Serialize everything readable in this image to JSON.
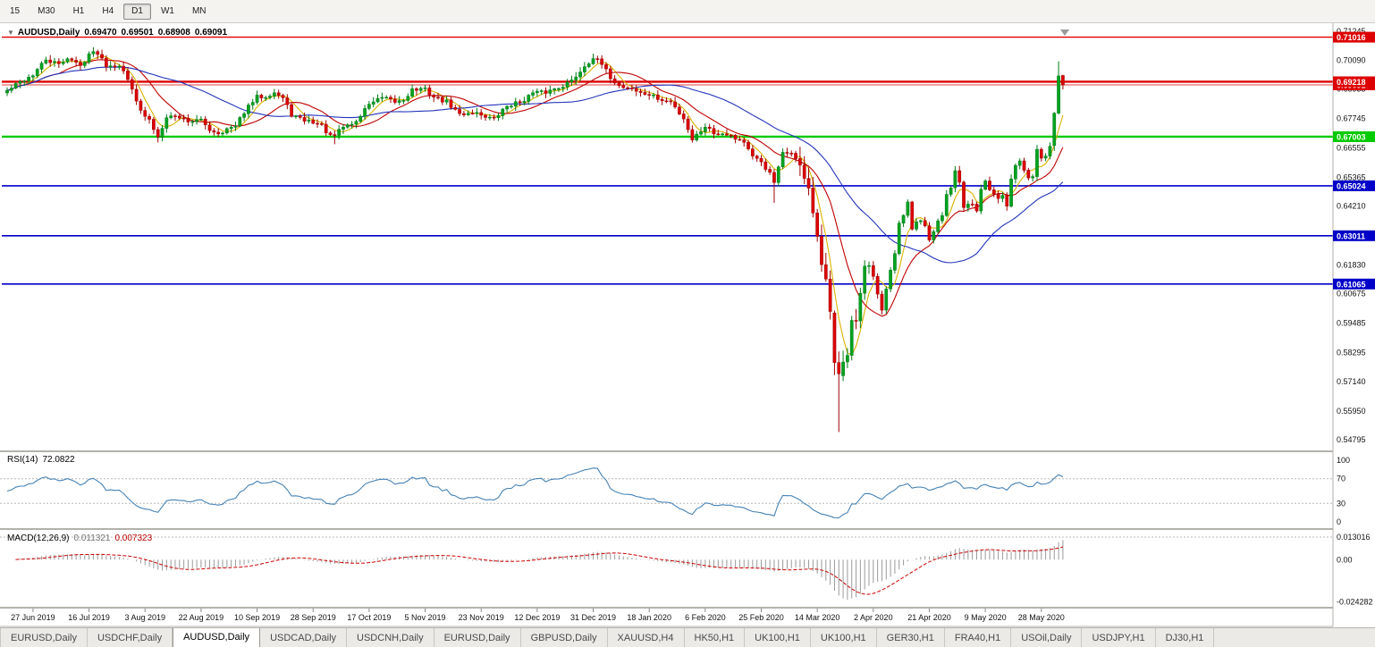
{
  "toolbar": {
    "periods": [
      {
        "label": "15",
        "active": false
      },
      {
        "label": "M30",
        "active": false
      },
      {
        "label": "H1",
        "active": false
      },
      {
        "label": "H4",
        "active": false
      },
      {
        "label": "D1",
        "active": true
      },
      {
        "label": "W1",
        "active": false
      },
      {
        "label": "MN",
        "active": false
      }
    ]
  },
  "chart": {
    "title": {
      "symbol": "AUDUSD,Daily",
      "open": "0.69470",
      "high": "0.69501",
      "low": "0.68908",
      "close": "0.69091"
    },
    "colors": {
      "up": "#00a21f",
      "up_stroke": "#007a16",
      "down": "#dd0000",
      "down_stroke": "#9e0000",
      "ma_fast": "#d9b300",
      "ma_mid": "#c00000",
      "ma_slow": "#2335bb",
      "level_red": "#dd0000",
      "level_green": "#00ca00",
      "level_blue": "#0000c8",
      "rsi": "#4682b4",
      "macd_hist": "#9a9a9a",
      "macd_signal": "#cc0000",
      "axis_text": "#111111",
      "badge_text": "#ffffff"
    },
    "price_axis": {
      "ticks": [
        "0.71245",
        "0.70090",
        "0.68935",
        "0.67745",
        "0.66555",
        "0.65365",
        "0.64210",
        "0.63020",
        "0.61830",
        "0.60675",
        "0.59485",
        "0.58295",
        "0.57140",
        "0.55950",
        "0.54795"
      ]
    },
    "levels": [
      {
        "price": 0.71016,
        "label": "0.71016",
        "color": "red",
        "width": 1.3
      },
      {
        "price": 0.69218,
        "label": "0.69218",
        "color": "red",
        "width": 2.4
      },
      {
        "price": 0.67003,
        "label": "0.67003",
        "color": "green",
        "width": 2.4
      },
      {
        "price": 0.65024,
        "label": "0.65024",
        "color": "blue",
        "width": 1.6
      },
      {
        "price": 0.63011,
        "label": "0.63011",
        "color": "blue",
        "width": 1.6
      },
      {
        "price": 0.61065,
        "label": "0.61065",
        "color": "blue",
        "width": 1.6
      }
    ],
    "bid": {
      "price": 0.69091,
      "label": "0.69091"
    }
  },
  "chart_data": {
    "type": "candlestick",
    "symbol": "AUDUSD",
    "timeframe": "Daily",
    "bar_count": 246,
    "price_range": [
      0.5436,
      0.7136
    ],
    "dates": [
      "27 Jun 2019",
      "16 Jul 2019",
      "3 Aug 2019",
      "22 Aug 2019",
      "10 Sep 2019",
      "28 Sep 2019",
      "17 Oct 2019",
      "5 Nov 2019",
      "23 Nov 2019",
      "12 Dec 2019",
      "31 Dec 2019",
      "18 Jan 2020",
      "6 Feb 2020",
      "25 Feb 2020",
      "14 Mar 2020",
      "2 Apr 2020",
      "21 Apr 2020",
      "9 May 2020",
      "28 May 2020"
    ],
    "label_start_bar": 6,
    "bars_per_label": 13,
    "anchors": [
      [
        0,
        0.6885
      ],
      [
        3,
        0.692
      ],
      [
        6,
        0.695
      ],
      [
        9,
        0.701
      ],
      [
        12,
        0.699
      ],
      [
        14,
        0.702
      ],
      [
        17,
        0.6985
      ],
      [
        19,
        0.7035
      ],
      [
        21,
        0.704
      ],
      [
        23,
        0.699
      ],
      [
        26,
        0.699
      ],
      [
        29,
        0.69
      ],
      [
        31,
        0.68
      ],
      [
        33,
        0.6765
      ],
      [
        35,
        0.67
      ],
      [
        37,
        0.6785
      ],
      [
        40,
        0.678
      ],
      [
        42,
        0.6765
      ],
      [
        45,
        0.6765
      ],
      [
        47,
        0.673
      ],
      [
        49,
        0.6715
      ],
      [
        51,
        0.673
      ],
      [
        53,
        0.674
      ],
      [
        55,
        0.68
      ],
      [
        58,
        0.686
      ],
      [
        60,
        0.6865
      ],
      [
        62,
        0.688
      ],
      [
        64,
        0.6855
      ],
      [
        66,
        0.679
      ],
      [
        68,
        0.677
      ],
      [
        71,
        0.676
      ],
      [
        73,
        0.6745
      ],
      [
        75,
        0.67
      ],
      [
        76,
        0.6705
      ],
      [
        78,
        0.674
      ],
      [
        81,
        0.676
      ],
      [
        84,
        0.6835
      ],
      [
        87,
        0.6855
      ],
      [
        90,
        0.684
      ],
      [
        92,
        0.685
      ],
      [
        94,
        0.689
      ],
      [
        97,
        0.689
      ],
      [
        99,
        0.686
      ],
      [
        102,
        0.684
      ],
      [
        105,
        0.679
      ],
      [
        108,
        0.68
      ],
      [
        110,
        0.679
      ],
      [
        113,
        0.677
      ],
      [
        116,
        0.6825
      ],
      [
        119,
        0.684
      ],
      [
        122,
        0.6875
      ],
      [
        125,
        0.688
      ],
      [
        128,
        0.69
      ],
      [
        131,
        0.6925
      ],
      [
        134,
        0.6985
      ],
      [
        136,
        0.702
      ],
      [
        138,
        0.699
      ],
      [
        140,
        0.694
      ],
      [
        142,
        0.6905
      ],
      [
        145,
        0.6895
      ],
      [
        147,
        0.6875
      ],
      [
        149,
        0.687
      ],
      [
        152,
        0.6845
      ],
      [
        154,
        0.684
      ],
      [
        157,
        0.6775
      ],
      [
        159,
        0.669
      ],
      [
        161,
        0.6725
      ],
      [
        162,
        0.6745
      ],
      [
        164,
        0.6715
      ],
      [
        167,
        0.6715
      ],
      [
        169,
        0.6695
      ],
      [
        171,
        0.668
      ],
      [
        173,
        0.6615
      ],
      [
        175,
        0.66
      ],
      [
        177,
        0.655
      ],
      [
        178,
        0.6515
      ],
      [
        180,
        0.663
      ],
      [
        182,
        0.664
      ],
      [
        184,
        0.658
      ],
      [
        186,
        0.6495
      ],
      [
        188,
        0.629
      ],
      [
        189,
        0.6185
      ],
      [
        190,
        0.612
      ],
      [
        191,
        0.599
      ],
      [
        192,
        0.579
      ],
      [
        193,
        0.5745
      ],
      [
        194,
        0.58
      ],
      [
        195,
        0.5825
      ],
      [
        196,
        0.596
      ],
      [
        197,
        0.5955
      ],
      [
        198,
        0.6065
      ],
      [
        199,
        0.617
      ],
      [
        200,
        0.6175
      ],
      [
        201,
        0.6135
      ],
      [
        202,
        0.606
      ],
      [
        203,
        0.5995
      ],
      [
        204,
        0.6085
      ],
      [
        205,
        0.6165
      ],
      [
        206,
        0.623
      ],
      [
        207,
        0.6345
      ],
      [
        208,
        0.638
      ],
      [
        209,
        0.644
      ],
      [
        210,
        0.632
      ],
      [
        211,
        0.6355
      ],
      [
        212,
        0.6365
      ],
      [
        213,
        0.6335
      ],
      [
        214,
        0.629
      ],
      [
        215,
        0.632
      ],
      [
        216,
        0.637
      ],
      [
        217,
        0.639
      ],
      [
        218,
        0.6465
      ],
      [
        219,
        0.649
      ],
      [
        220,
        0.6555
      ],
      [
        221,
        0.651
      ],
      [
        222,
        0.6415
      ],
      [
        223,
        0.6425
      ],
      [
        224,
        0.6435
      ],
      [
        225,
        0.6405
      ],
      [
        226,
        0.6495
      ],
      [
        227,
        0.653
      ],
      [
        228,
        0.649
      ],
      [
        229,
        0.647
      ],
      [
        230,
        0.645
      ],
      [
        231,
        0.646
      ],
      [
        232,
        0.6415
      ],
      [
        233,
        0.6525
      ],
      [
        234,
        0.659
      ],
      [
        235,
        0.66
      ],
      [
        236,
        0.6565
      ],
      [
        237,
        0.6535
      ],
      [
        238,
        0.654
      ],
      [
        239,
        0.665
      ],
      [
        240,
        0.6615
      ],
      [
        241,
        0.6625
      ],
      [
        242,
        0.6665
      ],
      [
        243,
        0.6795
      ],
      [
        244,
        0.6945
      ],
      [
        245,
        0.6909
      ]
    ],
    "overrides": [
      {
        "i": 245,
        "o": 0.6947,
        "h": 0.69501,
        "l": 0.68908,
        "c": 0.69091
      },
      {
        "i": 244,
        "o": 0.6795,
        "h": 0.7004,
        "l": 0.679,
        "c": 0.6945
      },
      {
        "i": 243,
        "o": 0.6665,
        "h": 0.68,
        "l": 0.6643,
        "c": 0.6795
      },
      {
        "i": 193,
        "o": 0.579,
        "h": 0.5835,
        "l": 0.551,
        "c": 0.5745
      },
      {
        "i": 192,
        "o": 0.599,
        "h": 0.6,
        "l": 0.574,
        "c": 0.579
      },
      {
        "i": 178,
        "l": 0.6434
      },
      {
        "i": 35,
        "l": 0.6677
      },
      {
        "i": 76,
        "l": 0.667
      }
    ],
    "vol_region": [
      184,
      200,
      2.4
    ],
    "moving_averages": [
      {
        "period": 5,
        "color": "ma_fast"
      },
      {
        "period": 13,
        "color": "ma_mid"
      },
      {
        "period": 34,
        "color": "ma_slow"
      }
    ],
    "indicators": {
      "rsi": {
        "period": 14,
        "value": 72.0822,
        "levels": [
          70,
          30
        ]
      },
      "macd": {
        "fast": 12,
        "slow": 26,
        "signal": 9,
        "value": 0.011321,
        "signal_value": 0.007323
      }
    }
  },
  "rsi_panel": {
    "name": "RSI(14)",
    "value": "72.0822",
    "ticks": [
      {
        "v": 100,
        "label": "100",
        "dashed": false
      },
      {
        "v": 70,
        "label": "70",
        "dashed": true
      },
      {
        "v": 30,
        "label": "30",
        "dashed": true
      },
      {
        "v": 0,
        "label": "0",
        "dashed": false
      }
    ]
  },
  "macd_panel": {
    "name": "MACD(12,26,9)",
    "main_value": "0.011321",
    "signal_value": "0.007323",
    "ticks": [
      {
        "v": 0.013016,
        "label": "0.013016",
        "dashed": true
      },
      {
        "v": 0,
        "label": "0.00",
        "dashed": false
      },
      {
        "v": -0.024282,
        "label": "-0.024282",
        "dashed": false
      }
    ]
  },
  "tabs": [
    {
      "label": "EURUSD,Daily",
      "active": false
    },
    {
      "label": "USDCHF,Daily",
      "active": false
    },
    {
      "label": "AUDUSD,Daily",
      "active": true
    },
    {
      "label": "USDCAD,Daily",
      "active": false
    },
    {
      "label": "USDCNH,Daily",
      "active": false
    },
    {
      "label": "EURUSD,Daily",
      "active": false
    },
    {
      "label": "GBPUSD,Daily",
      "active": false
    },
    {
      "label": "XAUUSD,H4",
      "active": false
    },
    {
      "label": "HK50,H1",
      "active": false
    },
    {
      "label": "UK100,H1",
      "active": false
    },
    {
      "label": "UK100,H1",
      "active": false
    },
    {
      "label": "GER30,H1",
      "active": false
    },
    {
      "label": "FRA40,H1",
      "active": false
    },
    {
      "label": "USOil,Daily",
      "active": false
    },
    {
      "label": "USDJPY,H1",
      "active": false
    },
    {
      "label": "DJ30,H1",
      "active": false
    }
  ]
}
